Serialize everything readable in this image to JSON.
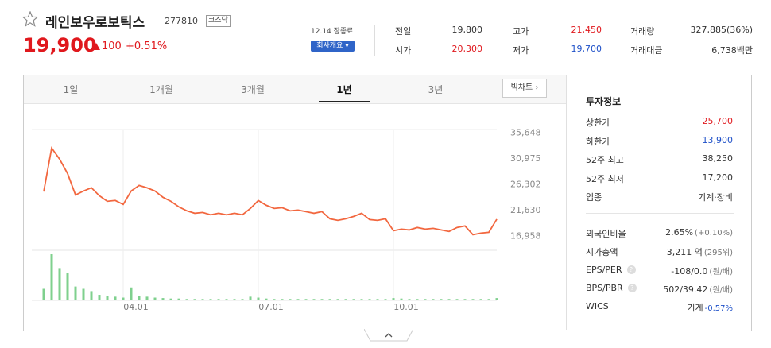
{
  "header": {
    "name": "레인보우로보틱스",
    "code": "277810",
    "market": "코스닥",
    "price": "19,900",
    "change": "100",
    "change_pct": "+0.51%",
    "status": "12.14 장종료",
    "company_button": "회사개요"
  },
  "summary": [
    {
      "label": "전일",
      "value": "19,800",
      "color": "#333333"
    },
    {
      "label": "시가",
      "value": "20,300",
      "color": "#e0181d"
    },
    {
      "label": "고가",
      "value": "21,450",
      "color": "#e0181d"
    },
    {
      "label": "저가",
      "value": "19,700",
      "color": "#1e50c8"
    },
    {
      "label": "거래량",
      "value": "327,885(36%)",
      "color": "#333333"
    },
    {
      "label": "거래대금",
      "value": "6,738백만",
      "color": "#333333"
    }
  ],
  "tabs": {
    "items": [
      "1일",
      "1개월",
      "3개월",
      "1년",
      "3년"
    ],
    "active": 3,
    "big_chart": "빅차트"
  },
  "chart_data": [
    {
      "type": "line",
      "color": "#f2673f",
      "categories": [
        null,
        null,
        null,
        null,
        null,
        null,
        null,
        null,
        null,
        null,
        "04.01",
        null,
        null,
        null,
        null,
        null,
        null,
        null,
        null,
        null,
        null,
        null,
        null,
        null,
        null,
        null,
        null,
        "07.01",
        null,
        null,
        null,
        null,
        null,
        null,
        null,
        null,
        null,
        null,
        null,
        null,
        null,
        null,
        null,
        null,
        "10.01",
        null,
        null,
        null,
        null,
        null,
        null,
        null,
        null,
        null,
        null,
        null,
        null,
        null
      ],
      "values": [
        24900,
        32770,
        30760,
        28170,
        24290,
        25000,
        25600,
        24150,
        23140,
        23300,
        22570,
        25000,
        26010,
        25580,
        25010,
        23860,
        23140,
        22130,
        21420,
        20980,
        21130,
        20700,
        20980,
        20700,
        20980,
        20700,
        21850,
        23280,
        22420,
        21850,
        21990,
        21420,
        21560,
        21270,
        20980,
        21270,
        19980,
        19690,
        19980,
        20410,
        20980,
        19830,
        19690,
        19980,
        17820,
        18110,
        17960,
        18400,
        18110,
        18250,
        17960,
        17680,
        18400,
        18680,
        17100,
        17390,
        17530,
        19900
      ],
      "ylim": [
        15000,
        38000
      ],
      "yticks": [
        {
          "value": 16958,
          "label": "16,958"
        },
        {
          "value": 21630,
          "label": "21,630"
        },
        {
          "value": 26302,
          "label": "26,302"
        },
        {
          "value": 30975,
          "label": "30,975"
        },
        {
          "value": 35648,
          "label": "35,648"
        }
      ],
      "grid": true
    },
    {
      "type": "bar",
      "color": "#7fd08e",
      "ylim": [
        0,
        100
      ],
      "values": [
        25,
        100,
        70,
        60,
        30,
        25,
        20,
        12,
        10,
        8,
        6,
        28,
        10,
        8,
        6,
        5,
        4,
        4,
        3,
        3,
        3,
        3,
        3,
        3,
        3,
        3,
        8,
        6,
        4,
        3,
        3,
        3,
        3,
        3,
        3,
        3,
        3,
        3,
        3,
        3,
        3,
        3,
        3,
        3,
        5,
        4,
        3,
        3,
        3,
        3,
        3,
        3,
        3,
        3,
        3,
        3,
        3,
        5
      ]
    }
  ],
  "invest_info": {
    "title": "투자정보",
    "rows": [
      {
        "label": "상한가",
        "value": "25,700",
        "color": "#e0181d"
      },
      {
        "label": "하한가",
        "value": "13,900",
        "color": "#1e50c8"
      },
      {
        "label": "52주 최고",
        "value": "38,250",
        "color": "#333333"
      },
      {
        "label": "52주 최저",
        "value": "17,200",
        "color": "#333333"
      },
      {
        "label": "업종",
        "value": "기계·장비",
        "color": "#333333"
      }
    ],
    "rows2": [
      {
        "label": "외국인비율",
        "value": "2.65%",
        "note": "(+0.10%)",
        "note_color": "#777777",
        "help": false
      },
      {
        "label": "시가총액",
        "value": "3,211 억",
        "note": "(295위)",
        "note_color": "#777777",
        "help": false
      },
      {
        "label": "EPS/PER",
        "value": "-108/0.0",
        "note": "(원/배)",
        "note_color": "#777777",
        "help": true
      },
      {
        "label": "BPS/PBR",
        "value": "502/39.42",
        "note": "(원/배)",
        "note_color": "#777777",
        "help": true
      },
      {
        "label": "WICS",
        "value": "기계",
        "note": "-0.57%",
        "note_color": "#1e50c8",
        "help": false
      }
    ]
  }
}
